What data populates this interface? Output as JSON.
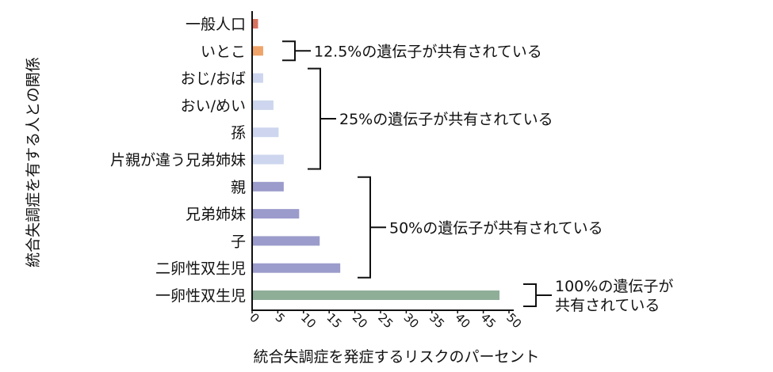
{
  "chart_data": {
    "type": "bar",
    "orientation": "horizontal",
    "title": "",
    "xlabel": "統合失調症を発症するリスクのパーセント",
    "ylabel": "統合失調症を有する人との関係",
    "xlim": [
      0,
      50
    ],
    "xticks": [
      "0",
      "5",
      "10",
      "15",
      "20",
      "25",
      "30",
      "35",
      "40",
      "45",
      "50"
    ],
    "grid": false,
    "categories": [
      "一般人口",
      "いとこ",
      "おじ/おば",
      "おい/めい",
      "孫",
      "片親が違う兄弟姉妹",
      "親",
      "兄弟姉妹",
      "子",
      "二卵性双生児",
      "一卵性双生児"
    ],
    "values": [
      1,
      2,
      2,
      4,
      5,
      6,
      6,
      9,
      13,
      17,
      48
    ],
    "colors": [
      "#d9735f",
      "#f0a46a",
      "#cdd6ee",
      "#cdd6ee",
      "#cdd6ee",
      "#cdd6ee",
      "#9b9ccb",
      "#9b9ccb",
      "#9b9ccb",
      "#9b9ccb",
      "#8fae98"
    ],
    "annotations": [
      {
        "text_lines": [
          "12.5%の遺伝子が共有されている"
        ],
        "from": 1,
        "to": 1
      },
      {
        "text_lines": [
          "25%の遺伝子が共有されている"
        ],
        "from": 2,
        "to": 5
      },
      {
        "text_lines": [
          "50%の遺伝子が共有されている"
        ],
        "from": 6,
        "to": 9
      },
      {
        "text_lines": [
          "100%の遺伝子が",
          "共有されている"
        ],
        "from": 10,
        "to": 10
      }
    ]
  }
}
